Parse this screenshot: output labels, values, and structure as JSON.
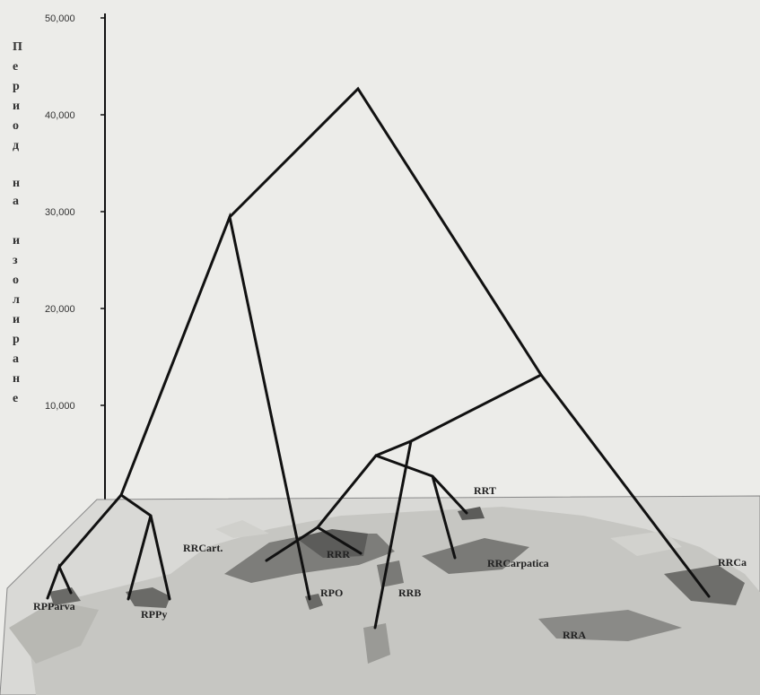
{
  "axis": {
    "title_chars": [
      "П",
      "е",
      "р",
      "и",
      "о",
      "д",
      " ",
      "н",
      "а",
      " ",
      "и",
      "з",
      "о",
      "л",
      "и",
      "р",
      "а",
      "н",
      "е"
    ],
    "ticks": [
      "50,000",
      "40,000",
      "30,000",
      "20,000",
      "10,000"
    ]
  },
  "tree": {
    "leaves": [
      "RPParva",
      "RPPy",
      "RRCart.",
      "RPO",
      "RRR",
      "RRB",
      "RRT",
      "RRCarpatica",
      "RRA",
      "RRCa"
    ]
  },
  "colors": {
    "background": "#e8e8e6",
    "map_base": "#d9d9d6",
    "map_land": "#bdbdb9",
    "map_dark": "#555555",
    "lines": "#111111"
  }
}
